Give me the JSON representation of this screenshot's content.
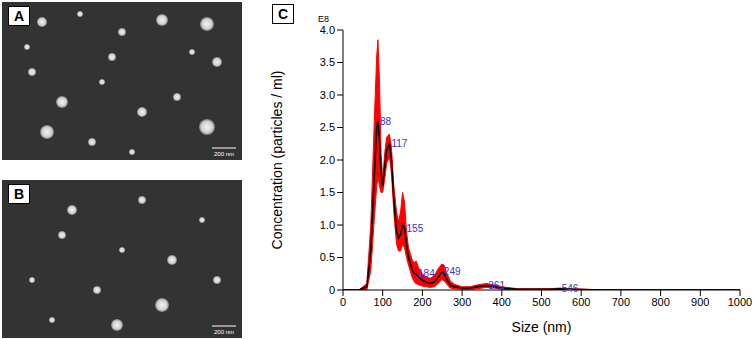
{
  "panels": [
    {
      "label": "A",
      "scale_bar": "200 nm"
    },
    {
      "label": "B",
      "scale_bar": "200 nm"
    }
  ],
  "chart_data": {
    "type": "line",
    "panel_label": "C",
    "x_label": "Size (nm)",
    "y_label": "Concentration (particles / ml)",
    "y_unit_label": "E8",
    "grid": false,
    "color": "#000000",
    "xlim": [
      0,
      1000
    ],
    "xticks": [
      0,
      100,
      200,
      300,
      400,
      500,
      600,
      700,
      800,
      900,
      1000
    ],
    "ylim": [
      0,
      4
    ],
    "yticks": [
      0,
      0.5,
      {
        "value": 1,
        "label": "1.0"
      },
      1.5,
      {
        "value": 2,
        "label": "2.0"
      },
      2.5,
      {
        "value": 3,
        "label": "3.0"
      },
      3.5,
      {
        "value": 4,
        "label": "4.0"
      }
    ],
    "x": [
      0,
      40,
      60,
      70,
      80,
      85,
      88,
      92,
      96,
      100,
      105,
      110,
      117,
      122,
      128,
      135,
      140,
      145,
      150,
      155,
      160,
      165,
      170,
      175,
      180,
      184,
      190,
      200,
      210,
      220,
      230,
      240,
      249,
      255,
      260,
      270,
      280,
      300,
      320,
      340,
      361,
      380,
      400,
      440,
      480,
      520,
      546,
      580,
      620,
      650,
      700,
      800,
      900,
      1000
    ],
    "values": [
      0,
      0,
      0.05,
      0.6,
      1.9,
      2.5,
      2.6,
      2.3,
      1.8,
      1.6,
      1.9,
      2.15,
      2.25,
      2.0,
      1.4,
      0.9,
      0.8,
      0.85,
      1.0,
      0.95,
      0.7,
      0.5,
      0.4,
      0.3,
      0.25,
      0.25,
      0.2,
      0.15,
      0.12,
      0.1,
      0.12,
      0.2,
      0.28,
      0.25,
      0.18,
      0.08,
      0.05,
      0.03,
      0.03,
      0.05,
      0.07,
      0.05,
      0.03,
      0.01,
      0.01,
      0.01,
      0.02,
      0.01,
      0.005,
      0,
      0,
      0,
      0,
      0
    ],
    "error_band": {
      "color": "#ff0000",
      "lower": [
        0,
        0,
        0,
        0.3,
        1.2,
        1.6,
        1.75,
        1.6,
        1.5,
        1.5,
        1.7,
        1.95,
        2.05,
        1.8,
        1.2,
        0.7,
        0.6,
        0.6,
        0.7,
        0.65,
        0.5,
        0.38,
        0.28,
        0.18,
        0.12,
        0.1,
        0.08,
        0.06,
        0.05,
        0.04,
        0.05,
        0.1,
        0.16,
        0.14,
        0.1,
        0.03,
        0.02,
        0.01,
        0.01,
        0.02,
        0.04,
        0.03,
        0.01,
        0,
        0,
        0,
        0.01,
        0,
        0,
        0,
        0,
        0,
        0,
        0
      ],
      "upper": [
        0,
        0,
        0.1,
        1.0,
        2.8,
        3.6,
        3.85,
        3.2,
        2.1,
        1.7,
        2.1,
        2.35,
        2.4,
        2.2,
        1.6,
        1.2,
        1.05,
        1.2,
        1.5,
        1.35,
        0.9,
        0.65,
        0.55,
        0.45,
        0.42,
        0.45,
        0.35,
        0.25,
        0.2,
        0.18,
        0.22,
        0.33,
        0.4,
        0.38,
        0.28,
        0.14,
        0.09,
        0.05,
        0.05,
        0.08,
        0.1,
        0.08,
        0.05,
        0.02,
        0.02,
        0.02,
        0.03,
        0.02,
        0.01,
        0,
        0,
        0,
        0,
        0
      ]
    },
    "annotations": [
      {
        "x": 88,
        "text": "88"
      },
      {
        "x": 117,
        "text": "117"
      },
      {
        "x": 155,
        "text": "155"
      },
      {
        "x": 184,
        "text": "184"
      },
      {
        "x": 249,
        "text": "249"
      },
      {
        "x": 361,
        "text": "361"
      },
      {
        "x": 546,
        "text": "546"
      }
    ]
  }
}
